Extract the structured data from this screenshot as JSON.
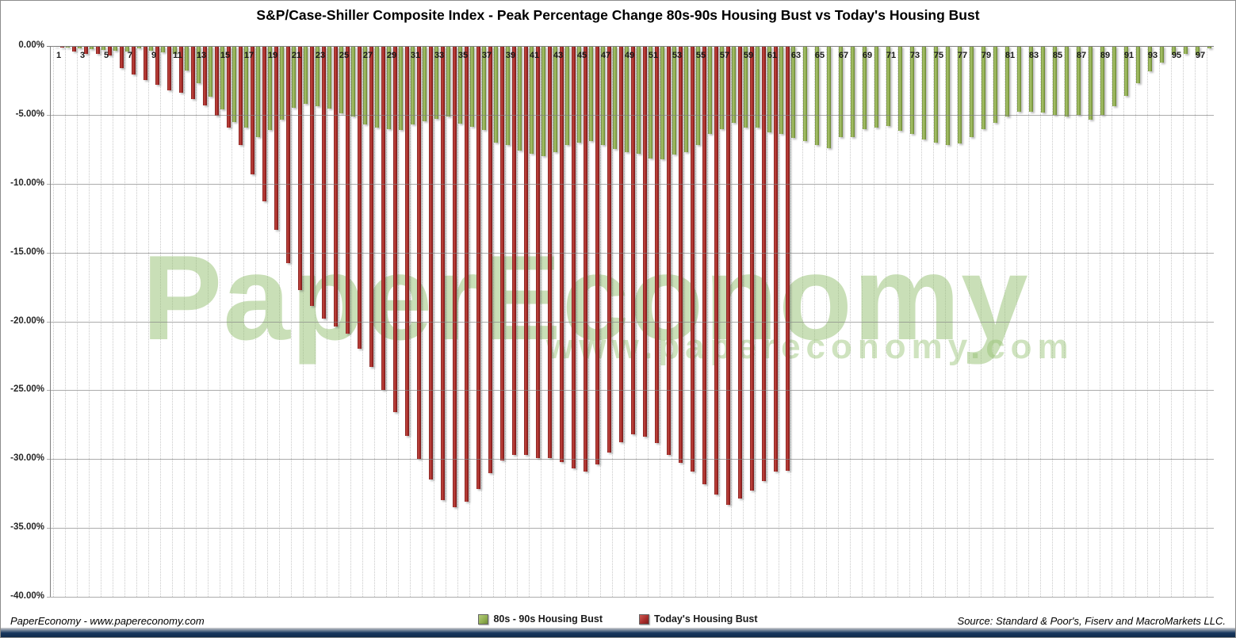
{
  "title": "S&P/Case-Shiller Composite Index - Peak Percentage Change 80s-90s Housing Bust vs Today's Housing Bust",
  "watermark": {
    "line1": "PaperEconomy",
    "line2": "www.papereconomy.com"
  },
  "footer": {
    "left": "PaperEconomy - www.papereconomy.com",
    "right": "Source: Standard & Poor's, Fiserv and MacroMarkets LLC."
  },
  "colors": {
    "green_series": "#8FAE4E",
    "red_series": "#A52A28",
    "gridline": "#808080",
    "watermark_green": "#94C070",
    "bottom_strip_navy": "#17375E"
  },
  "chart_data": {
    "type": "bar",
    "title": "S&P/Case-Shiller Composite Index - Peak Percentage Change 80s-90s Housing Bust vs Today's Housing Bust",
    "xlabel": "",
    "ylabel": "",
    "ylim": [
      -40,
      0
    ],
    "grid": true,
    "legend_position": "bottom",
    "num_categories": 98,
    "y_tick_labels": [
      "0.00%",
      "-5.00%",
      "-10.00%",
      "-15.00%",
      "-20.00%",
      "-25.00%",
      "-30.00%",
      "-35.00%",
      "-40.00%"
    ],
    "x_tick_labels": [
      "1",
      "3",
      "5",
      "7",
      "9",
      "11",
      "13",
      "15",
      "17",
      "19",
      "21",
      "23",
      "25",
      "27",
      "29",
      "31",
      "33",
      "35",
      "37",
      "39",
      "41",
      "43",
      "45",
      "47",
      "49",
      "51",
      "53",
      "55",
      "57",
      "59",
      "61",
      "63",
      "65",
      "67",
      "69",
      "71",
      "73",
      "75",
      "77",
      "79",
      "81",
      "83",
      "85",
      "87",
      "89",
      "91",
      "93",
      "95",
      "97"
    ],
    "series": [
      {
        "name": "80s - 90s Housing Bust",
        "color": "#8FAE4E",
        "values": [
          -0.05,
          -0.1,
          -0.15,
          -0.25,
          -0.3,
          -0.35,
          -0.4,
          -0.2,
          -0.35,
          -0.45,
          -0.55,
          -1.8,
          -2.7,
          -3.7,
          -4.6,
          -5.5,
          -5.95,
          -6.6,
          -6.1,
          -5.35,
          -4.5,
          -4.2,
          -4.35,
          -4.55,
          -4.9,
          -5.1,
          -5.7,
          -5.95,
          -6.05,
          -6.1,
          -5.7,
          -5.45,
          -5.3,
          -5.1,
          -5.65,
          -5.85,
          -6.1,
          -7.0,
          -7.2,
          -7.6,
          -7.8,
          -8.0,
          -7.7,
          -7.2,
          -7.0,
          -6.9,
          -7.2,
          -7.5,
          -7.7,
          -7.8,
          -8.15,
          -8.25,
          -7.9,
          -7.7,
          -7.2,
          -6.4,
          -6.05,
          -5.6,
          -5.95,
          -5.9,
          -6.25,
          -6.4,
          -6.7,
          -6.9,
          -7.2,
          -7.4,
          -6.6,
          -6.6,
          -6.05,
          -5.9,
          -5.8,
          -6.15,
          -6.4,
          -6.8,
          -7.0,
          -7.2,
          -7.1,
          -6.6,
          -6.05,
          -5.6,
          -5.1,
          -4.8,
          -4.8,
          -4.85,
          -5.0,
          -5.1,
          -5.0,
          -5.35,
          -5.0,
          -4.35,
          -3.6,
          -2.7,
          -1.85,
          -1.2,
          -0.65,
          -0.6,
          -0.7,
          -0.2
        ]
      },
      {
        "name": "Today's Housing Bust",
        "color": "#A52A28",
        "values": [
          -0.1,
          -0.4,
          -0.55,
          -0.6,
          -0.7,
          -1.6,
          -2.05,
          -2.45,
          -2.8,
          -3.2,
          -3.4,
          -3.85,
          -4.3,
          -5.05,
          -5.9,
          -7.2,
          -9.3,
          -11.3,
          -13.35,
          -15.75,
          -17.75,
          -18.85,
          -19.8,
          -20.4,
          -20.9,
          -22.0,
          -23.3,
          -25.0,
          -26.6,
          -28.3,
          -30.0,
          -31.5,
          -33.0,
          -33.5,
          -33.1,
          -32.2,
          -31.0,
          -30.1,
          -29.7,
          -29.7,
          -29.9,
          -29.9,
          -30.2,
          -30.7,
          -30.9,
          -30.4,
          -29.5,
          -28.8,
          -28.2,
          -28.4,
          -28.85,
          -29.7,
          -30.3,
          -30.9,
          -31.8,
          -32.6,
          -33.3,
          -32.85,
          -32.3,
          -31.6,
          -30.9,
          -30.85
        ]
      }
    ]
  }
}
